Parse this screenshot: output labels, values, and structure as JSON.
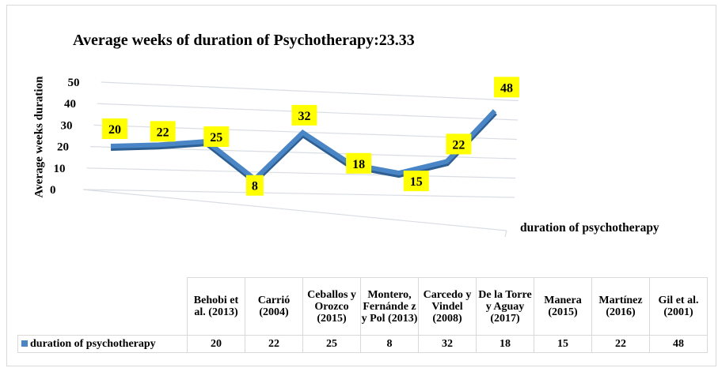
{
  "chart_data": {
    "type": "line",
    "style": "3d-line",
    "title": "Average weeks of duration of Psychotherapy:23.33",
    "ylabel": "Average weeks duration",
    "xlabel": "duration of psychotherapy",
    "ylim": [
      0,
      50
    ],
    "yticks": [
      "0",
      "10",
      "20",
      "30",
      "40",
      "50"
    ],
    "grid": true,
    "categories": [
      "Behobi et al. (2013)",
      "Carrió (2004)",
      "Ceballos y Orozco (2015)",
      "Montero, Fernánde z y Pol (2013)",
      "Carcedo y Vindel (2008)",
      "De la Torre y Aguay (2017)",
      "Manera (2015)",
      "Martínez (2016)",
      "Gil et al. (2001)"
    ],
    "series": [
      {
        "name": "duration of psychotherapy",
        "values": [
          20,
          22,
          25,
          8,
          32,
          18,
          15,
          22,
          48
        ]
      }
    ],
    "data_labels": true,
    "colors": {
      "line": "#4a86c5",
      "label_bg": "#ffff00",
      "grid": "#d9dde3"
    },
    "legend": "data-table"
  }
}
